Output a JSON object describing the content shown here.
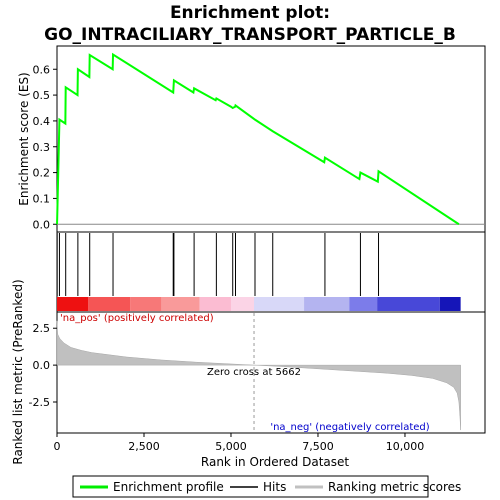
{
  "chart_data": {
    "type": "line",
    "title": "Enrichment plot: GO_INTRACILIARY_TRANSPORT_PARTICLE_B",
    "title_lines": [
      "Enrichment plot:",
      "GO_INTRACILIARY_TRANSPORT_PARTICLE_B"
    ],
    "top_panel": {
      "ylabel": "Enrichment score (ES)",
      "ylim": [
        -0.03,
        0.69
      ],
      "yticks": [
        0.0,
        0.1,
        0.2,
        0.3,
        0.4,
        0.5,
        0.6
      ],
      "ytick_labels": [
        "0.0",
        "0.1",
        "0.2",
        "0.3",
        "0.4",
        "0.5",
        "0.6"
      ],
      "series": [
        {
          "name": "Enrichment profile",
          "color": "#00ff00",
          "x": [
            0,
            5,
            70,
            240,
            250,
            590,
            600,
            930,
            940,
            1600,
            1610,
            3340,
            3360,
            3920,
            3940,
            4560,
            4580,
            5000,
            5050,
            5120,
            5130,
            5690,
            6200,
            7680,
            7700,
            8690,
            8720,
            9220,
            9240,
            11550
          ],
          "y": [
            0.0,
            0.02,
            0.405,
            0.39,
            0.53,
            0.5,
            0.6,
            0.57,
            0.655,
            0.6,
            0.657,
            0.51,
            0.557,
            0.51,
            0.526,
            0.48,
            0.487,
            0.455,
            0.45,
            0.455,
            0.46,
            0.405,
            0.36,
            0.24,
            0.258,
            0.175,
            0.2,
            0.165,
            0.205,
            0.0
          ]
        }
      ]
    },
    "hits": {
      "name": "Hits",
      "color": "#000000",
      "x": [
        5,
        70,
        250,
        600,
        940,
        1610,
        3340,
        3360,
        3940,
        4580,
        5050,
        5130,
        5690,
        6200,
        7700,
        8720,
        9240
      ]
    },
    "heat_bar": {
      "segments": [
        {
          "from": 0,
          "to": 900,
          "color": "#ee1111"
        },
        {
          "from": 900,
          "to": 2100,
          "color": "#f55555"
        },
        {
          "from": 2100,
          "to": 3000,
          "color": "#f77878"
        },
        {
          "from": 3000,
          "to": 4100,
          "color": "#f99a9a"
        },
        {
          "from": 4100,
          "to": 5000,
          "color": "#fbbcd2"
        },
        {
          "from": 5000,
          "to": 5662,
          "color": "#fbd4e6"
        },
        {
          "from": 5662,
          "to": 7100,
          "color": "#d8d8f8"
        },
        {
          "from": 7100,
          "to": 8400,
          "color": "#b4b4f0"
        },
        {
          "from": 8400,
          "to": 9200,
          "color": "#7c7cea"
        },
        {
          "from": 9200,
          "to": 11000,
          "color": "#4848d8"
        },
        {
          "from": 11000,
          "to": 11600,
          "color": "#1515b8"
        }
      ]
    },
    "bottom_panel": {
      "ylabel": "Ranked list metric (PreRanked)",
      "xlabel": "Rank in Ordered Dataset",
      "ylim": [
        -4.6,
        3.6
      ],
      "yticks": [
        2.5,
        0.0,
        -2.5
      ],
      "ytick_labels": [
        "2.5",
        "0.0",
        "-2.5"
      ],
      "xlim": [
        0,
        12300
      ],
      "xticks": [
        0,
        2500,
        5000,
        7500,
        10000
      ],
      "xtick_labels": [
        "0",
        "2,500",
        "5,000",
        "7,500",
        "10,000"
      ],
      "n_genes": 11600,
      "metric_curve": {
        "name": "Ranking metric scores",
        "color": "#c0c0c0",
        "x": [
          0,
          20,
          80,
          200,
          400,
          700,
          1000,
          1500,
          2000,
          3000,
          4000,
          5000,
          5662,
          6500,
          7500,
          8500,
          9500,
          10200,
          10800,
          11200,
          11400,
          11500,
          11550,
          11580,
          11600
        ],
        "y": [
          3.0,
          2.1,
          1.8,
          1.5,
          1.2,
          1.0,
          0.85,
          0.7,
          0.55,
          0.35,
          0.2,
          0.08,
          0.0,
          -0.1,
          -0.25,
          -0.4,
          -0.55,
          -0.7,
          -0.9,
          -1.2,
          -1.5,
          -1.9,
          -2.5,
          -3.5,
          -4.4
        ]
      },
      "zero_cross": 5662,
      "zero_cross_label": "Zero cross at 5662",
      "pos_label": "'na_pos' (positively correlated)",
      "neg_label": "'na_neg' (negatively correlated)",
      "pos_color": "#cc0000",
      "neg_color": "#0000cc"
    },
    "legend": {
      "placement": "bottom",
      "entries": [
        {
          "label": "Enrichment profile",
          "color": "#00ff00"
        },
        {
          "label": "Hits",
          "color": "#000000"
        },
        {
          "label": "Ranking metric scores",
          "color": "#c0c0c0"
        }
      ]
    }
  }
}
